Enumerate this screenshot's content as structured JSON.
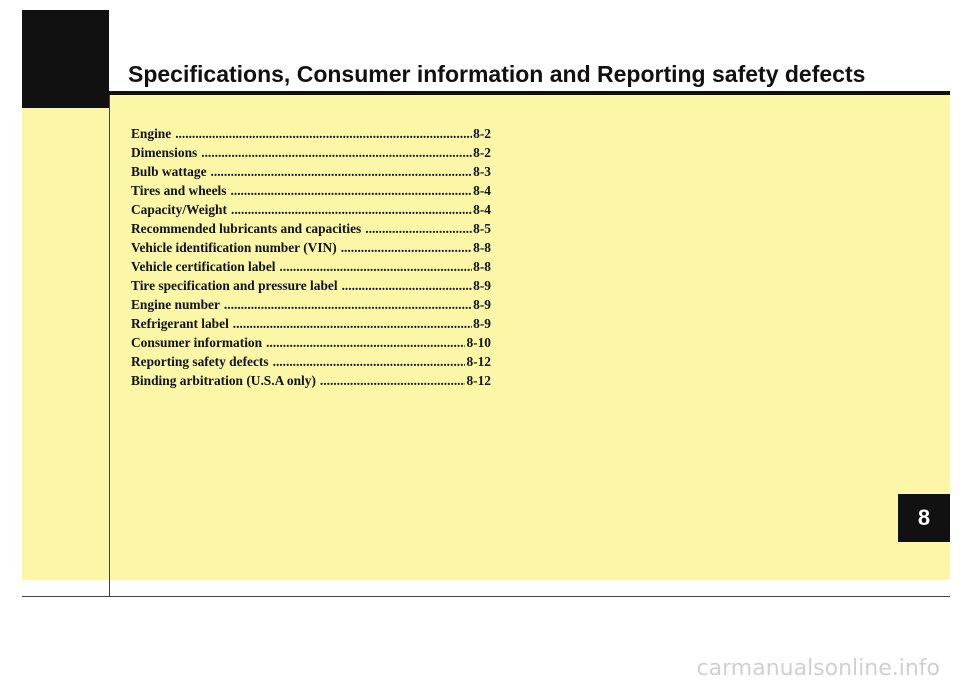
{
  "header": {
    "title": "Specifications, Consumer information and Reporting safety defects"
  },
  "toc": [
    {
      "label": "Engine",
      "page": "8-2"
    },
    {
      "label": "Dimensions",
      "page": "8-2"
    },
    {
      "label": "Bulb wattage",
      "page": "8-3"
    },
    {
      "label": "Tires and wheels",
      "page": "8-4"
    },
    {
      "label": "Capacity/Weight",
      "page": "8-4"
    },
    {
      "label": "Recommended lubricants and capacities",
      "page": "8-5"
    },
    {
      "label": "Vehicle identification number (VIN)",
      "page": "8-8"
    },
    {
      "label": "Vehicle certification label",
      "page": "8-8"
    },
    {
      "label": "Tire specification and pressure label",
      "page": "8-9"
    },
    {
      "label": "Engine number",
      "page": "8-9"
    },
    {
      "label": "Refrigerant label",
      "page": "8-9"
    },
    {
      "label": "Consumer information",
      "page": "8-10"
    },
    {
      "label": "Reporting safety defects",
      "page": "8-12"
    },
    {
      "label": "Binding arbitration (U.S.A only)",
      "page": "8-12"
    }
  ],
  "chapter_tab": {
    "label": "8"
  },
  "watermark": {
    "text": "carmanualsonline.info"
  },
  "colors": {
    "panel": "#fbf7a6",
    "ink": "#111111",
    "watermark": "#d0d0d0"
  }
}
